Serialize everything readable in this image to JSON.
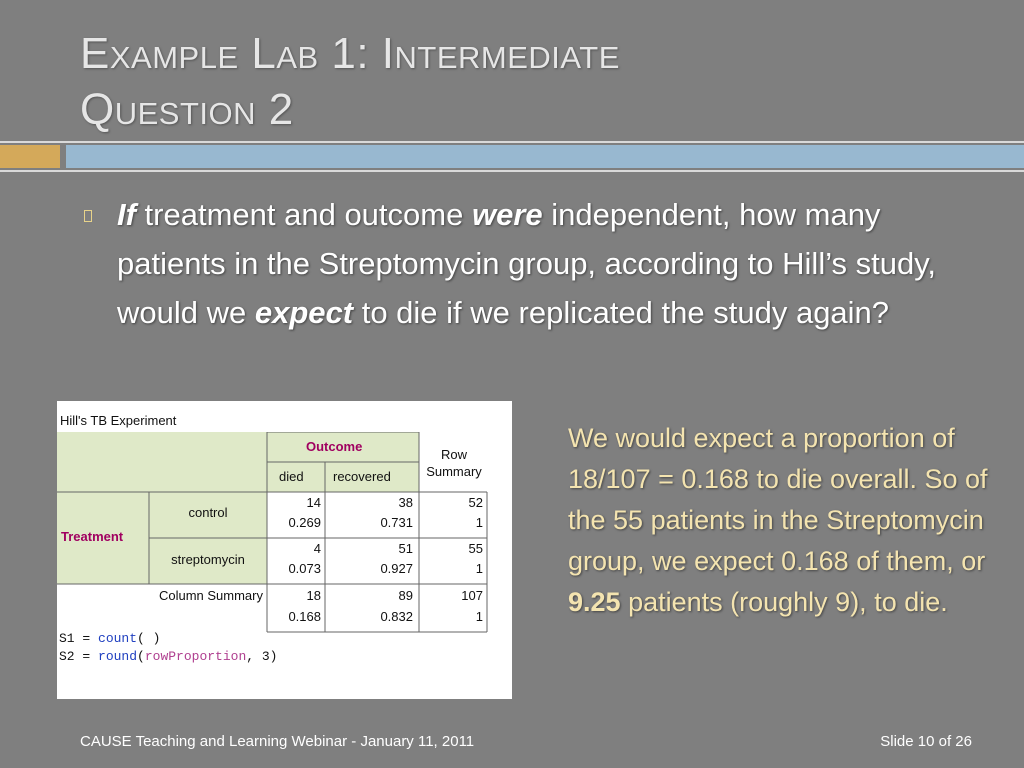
{
  "slide": {
    "title_line1": "Example Lab 1: Intermediate",
    "title_line2": "Question 2",
    "bullet": {
      "if": "If",
      "part1": " treatment and outcome ",
      "were": "were",
      "part2": " independent, how many patients in the Streptomycin group, according to Hill’s study, would we ",
      "expect": "expect",
      "part3": " to die if we replicated the study again?"
    },
    "answer": {
      "part1": "We would expect a proportion of 18/107 = 0.168 to die overall. So of the 55 patients in the Streptomycin group, we expect 0.168 of them, or ",
      "bold": "9.25",
      "part2": " patients (roughly 9), to die."
    },
    "footer_left": "CAUSE Teaching and Learning Webinar - January 11, 2011",
    "footer_right": "Slide 10 of 26",
    "colors": {
      "background": "#7f7f7f",
      "title": "#e6e6e6",
      "bar_gold": "#d4a95a",
      "bar_blue": "#98b8d0",
      "answer_text": "#f4e4b0",
      "table_header_fill": "#dfe9c8",
      "table_label_color": "#a00060"
    }
  },
  "table": {
    "title": "Hill's TB Experiment",
    "outcome_label": "Outcome",
    "row_summary_label": "Row Summary",
    "col_died": "died",
    "col_recovered": "recovered",
    "treatment_label": "Treatment",
    "rows": [
      {
        "label": "control",
        "died": "14",
        "died_p": "0.269",
        "rec": "38",
        "rec_p": "0.731",
        "sum": "52",
        "sum_p": "1"
      },
      {
        "label": "streptomycin",
        "died": "4",
        "died_p": "0.073",
        "rec": "51",
        "rec_p": "0.927",
        "sum": "55",
        "sum_p": "1"
      }
    ],
    "column_summary_label": "Column Summary",
    "col_summary": {
      "died": "18",
      "died_p": "0.168",
      "rec": "89",
      "rec_p": "0.832",
      "sum": "107",
      "sum_p": "1"
    },
    "formula1_prefix": "S1 = ",
    "formula1_fn": "count",
    "formula1_args": "(  )",
    "formula2_prefix": "S2 = ",
    "formula2_fn": "round",
    "formula2_open": "(",
    "formula2_arg": "rowProportion",
    "formula2_close": ", 3)"
  }
}
